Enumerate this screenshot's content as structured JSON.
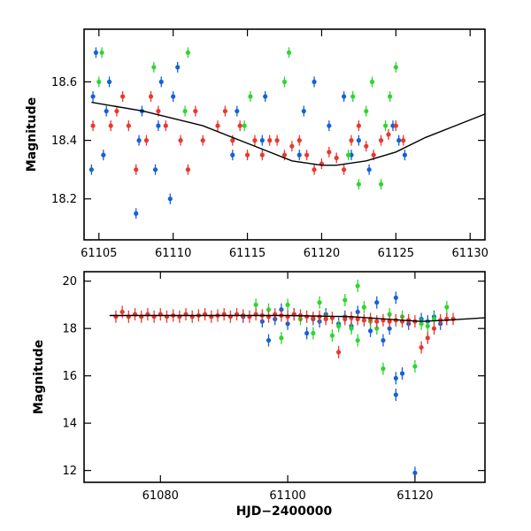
{
  "chart_data": [
    {
      "type": "scatter",
      "panel": "top",
      "xlim": [
        61104,
        61131
      ],
      "ylim": [
        18.78,
        18.06
      ],
      "y_inverted": true,
      "ylabel": "Magnitude",
      "xlabel": "",
      "x_ticks": [
        61105,
        61110,
        61115,
        61120,
        61125,
        61130
      ],
      "y_ticks": [
        18.2,
        18.4,
        18.6
      ],
      "model_curve": {
        "color": "#000000",
        "x": [
          61104.5,
          61108,
          61112,
          61116,
          61118,
          61120,
          61121,
          61123,
          61125,
          61127,
          61129,
          61131
        ],
        "y": [
          18.53,
          18.5,
          18.45,
          18.37,
          18.33,
          18.315,
          18.315,
          18.33,
          18.36,
          18.41,
          18.45,
          18.49
        ]
      },
      "series": [
        {
          "name": "blue",
          "color": "#1560d8",
          "points": [
            [
              61104.5,
              18.3
            ],
            [
              61104.6,
              18.55
            ],
            [
              61104.8,
              18.7
            ],
            [
              61105.3,
              18.35
            ],
            [
              61105.5,
              18.5
            ],
            [
              61105.7,
              18.6
            ],
            [
              61107.5,
              18.15
            ],
            [
              61107.7,
              18.4
            ],
            [
              61107.9,
              18.5
            ],
            [
              61108.8,
              18.3
            ],
            [
              61109.0,
              18.45
            ],
            [
              61109.2,
              18.6
            ],
            [
              61109.8,
              18.2
            ],
            [
              61110.0,
              18.55
            ],
            [
              61110.3,
              18.65
            ],
            [
              61114.0,
              18.35
            ],
            [
              61114.3,
              18.5
            ],
            [
              61116.0,
              18.4
            ],
            [
              61116.2,
              18.55
            ],
            [
              61118.5,
              18.35
            ],
            [
              61118.8,
              18.5
            ],
            [
              61119.5,
              18.6
            ],
            [
              61120.5,
              18.45
            ],
            [
              61121.5,
              18.55
            ],
            [
              61122.0,
              18.35
            ],
            [
              61122.5,
              18.4
            ],
            [
              61123.2,
              18.3
            ],
            [
              61124.8,
              18.45
            ],
            [
              61125.2,
              18.4
            ],
            [
              61125.6,
              18.35
            ]
          ]
        },
        {
          "name": "green",
          "color": "#2fd52f",
          "points": [
            [
              61105.0,
              18.6
            ],
            [
              61105.2,
              18.7
            ],
            [
              61108.7,
              18.65
            ],
            [
              61110.8,
              18.5
            ],
            [
              61111.0,
              18.7
            ],
            [
              61114.8,
              18.45
            ],
            [
              61115.2,
              18.55
            ],
            [
              61117.5,
              18.6
            ],
            [
              61117.8,
              18.7
            ],
            [
              61121.8,
              18.35
            ],
            [
              61122.1,
              18.55
            ],
            [
              61122.5,
              18.25
            ],
            [
              61123.0,
              18.5
            ],
            [
              61123.4,
              18.6
            ],
            [
              61124.0,
              18.25
            ],
            [
              61124.3,
              18.45
            ],
            [
              61124.6,
              18.55
            ],
            [
              61125.0,
              18.65
            ]
          ]
        },
        {
          "name": "red",
          "color": "#e8382e",
          "points": [
            [
              61104.6,
              18.45
            ],
            [
              61105.8,
              18.45
            ],
            [
              61106.2,
              18.5
            ],
            [
              61106.6,
              18.55
            ],
            [
              61107.0,
              18.45
            ],
            [
              61107.5,
              18.3
            ],
            [
              61108.2,
              18.4
            ],
            [
              61108.5,
              18.55
            ],
            [
              61109.0,
              18.5
            ],
            [
              61109.5,
              18.45
            ],
            [
              61110.5,
              18.4
            ],
            [
              61111.0,
              18.3
            ],
            [
              61111.5,
              18.5
            ],
            [
              61112.0,
              18.4
            ],
            [
              61113.0,
              18.45
            ],
            [
              61113.5,
              18.5
            ],
            [
              61114.0,
              18.4
            ],
            [
              61114.5,
              18.45
            ],
            [
              61115.0,
              18.35
            ],
            [
              61115.5,
              18.4
            ],
            [
              61116.0,
              18.35
            ],
            [
              61116.5,
              18.4
            ],
            [
              61117.0,
              18.4
            ],
            [
              61117.5,
              18.35
            ],
            [
              61118.0,
              18.38
            ],
            [
              61118.5,
              18.4
            ],
            [
              61119.0,
              18.35
            ],
            [
              61119.5,
              18.3
            ],
            [
              61120.0,
              18.32
            ],
            [
              61120.5,
              18.36
            ],
            [
              61121.0,
              18.34
            ],
            [
              61121.5,
              18.3
            ],
            [
              61122.0,
              18.4
            ],
            [
              61122.5,
              18.45
            ],
            [
              61123.0,
              18.38
            ],
            [
              61123.5,
              18.35
            ],
            [
              61124.0,
              18.4
            ],
            [
              61124.5,
              18.42
            ],
            [
              61125.0,
              18.45
            ],
            [
              61125.5,
              18.4
            ]
          ]
        }
      ]
    },
    {
      "type": "scatter",
      "panel": "bottom",
      "xlim": [
        61068,
        61131
      ],
      "ylim": [
        20.4,
        11.5
      ],
      "y_inverted": true,
      "ylabel": "Magnitude",
      "xlabel": "HJD−2400000",
      "x_ticks": [
        61080,
        61100,
        61120
      ],
      "y_ticks": [
        12,
        14,
        16,
        18,
        20
      ],
      "model_curve": {
        "color": "#000000",
        "x": [
          61072,
          61080,
          61090,
          61100,
          61110,
          61118,
          61121,
          61125,
          61131
        ],
        "y": [
          18.55,
          18.55,
          18.55,
          18.55,
          18.5,
          18.35,
          18.3,
          18.35,
          18.45
        ]
      },
      "series": [
        {
          "name": "blue",
          "color": "#1560d8",
          "points": [
            [
              61093,
              18.5
            ],
            [
              61096,
              18.3
            ],
            [
              61097,
              17.5
            ],
            [
              61098,
              18.4
            ],
            [
              61099,
              18.8
            ],
            [
              61100,
              18.2
            ],
            [
              61101,
              18.6
            ],
            [
              61103,
              17.8
            ],
            [
              61104,
              18.4
            ],
            [
              61105,
              18.3
            ],
            [
              61106,
              18.6
            ],
            [
              61108,
              18.2
            ],
            [
              61109,
              18.5
            ],
            [
              61110,
              18.1
            ],
            [
              61111,
              18.7
            ],
            [
              61113,
              17.9
            ],
            [
              61114,
              19.1
            ],
            [
              61115,
              17.5
            ],
            [
              61116,
              18.0
            ],
            [
              61117,
              15.2
            ],
            [
              61117,
              15.9
            ],
            [
              61118,
              16.1
            ],
            [
              61117,
              19.3
            ],
            [
              61119,
              18.2
            ],
            [
              61120,
              11.9
            ],
            [
              61121,
              18.4
            ],
            [
              61122,
              18.3
            ],
            [
              61123,
              18.5
            ],
            [
              61124,
              18.2
            ],
            [
              61125,
              18.4
            ]
          ]
        },
        {
          "name": "green",
          "color": "#2fd52f",
          "points": [
            [
              61095,
              19.0
            ],
            [
              61097,
              18.8
            ],
            [
              61099,
              17.6
            ],
            [
              61100,
              19.0
            ],
            [
              61102,
              18.4
            ],
            [
              61104,
              17.8
            ],
            [
              61105,
              19.1
            ],
            [
              61106,
              18.5
            ],
            [
              61107,
              17.7
            ],
            [
              61108,
              18.1
            ],
            [
              61109,
              19.2
            ],
            [
              61110,
              18.0
            ],
            [
              61111,
              17.5
            ],
            [
              61111,
              19.8
            ],
            [
              61112,
              18.9
            ],
            [
              61113,
              18.3
            ],
            [
              61114,
              18.0
            ],
            [
              61115,
              16.3
            ],
            [
              61116,
              18.6
            ],
            [
              61118,
              18.5
            ],
            [
              61120,
              16.4
            ],
            [
              61121,
              18.2
            ],
            [
              61122,
              18.1
            ],
            [
              61123,
              18.4
            ],
            [
              61125,
              18.9
            ]
          ]
        },
        {
          "name": "red",
          "color": "#e8382e",
          "points": [
            [
              61073,
              18.5
            ],
            [
              61074,
              18.7
            ],
            [
              61075,
              18.5
            ],
            [
              61076,
              18.6
            ],
            [
              61077,
              18.5
            ],
            [
              61078,
              18.6
            ],
            [
              61079,
              18.5
            ],
            [
              61080,
              18.6
            ],
            [
              61081,
              18.5
            ],
            [
              61082,
              18.55
            ],
            [
              61083,
              18.5
            ],
            [
              61084,
              18.6
            ],
            [
              61085,
              18.5
            ],
            [
              61086,
              18.55
            ],
            [
              61087,
              18.6
            ],
            [
              61088,
              18.5
            ],
            [
              61089,
              18.55
            ],
            [
              61090,
              18.6
            ],
            [
              61091,
              18.5
            ],
            [
              61092,
              18.6
            ],
            [
              61093,
              18.55
            ],
            [
              61094,
              18.5
            ],
            [
              61095,
              18.6
            ],
            [
              61096,
              18.55
            ],
            [
              61097,
              18.5
            ],
            [
              61098,
              18.6
            ],
            [
              61099,
              18.55
            ],
            [
              61100,
              18.5
            ],
            [
              61101,
              18.6
            ],
            [
              61102,
              18.55
            ],
            [
              61103,
              18.5
            ],
            [
              61104,
              18.45
            ],
            [
              61105,
              18.5
            ],
            [
              61106,
              18.4
            ],
            [
              61107,
              18.45
            ],
            [
              61108,
              17.0
            ],
            [
              61109,
              18.4
            ],
            [
              61110,
              18.45
            ],
            [
              61111,
              18.4
            ],
            [
              61112,
              18.35
            ],
            [
              61113,
              18.4
            ],
            [
              61114,
              18.3
            ],
            [
              61115,
              18.35
            ],
            [
              61116,
              18.3
            ],
            [
              61117,
              18.35
            ],
            [
              61118,
              18.3
            ],
            [
              61119,
              18.35
            ],
            [
              61120,
              18.3
            ],
            [
              61121,
              17.2
            ],
            [
              61122,
              17.6
            ],
            [
              61123,
              18.0
            ],
            [
              61124,
              18.35
            ],
            [
              61125,
              18.4
            ],
            [
              61126,
              18.4
            ]
          ]
        }
      ]
    }
  ]
}
